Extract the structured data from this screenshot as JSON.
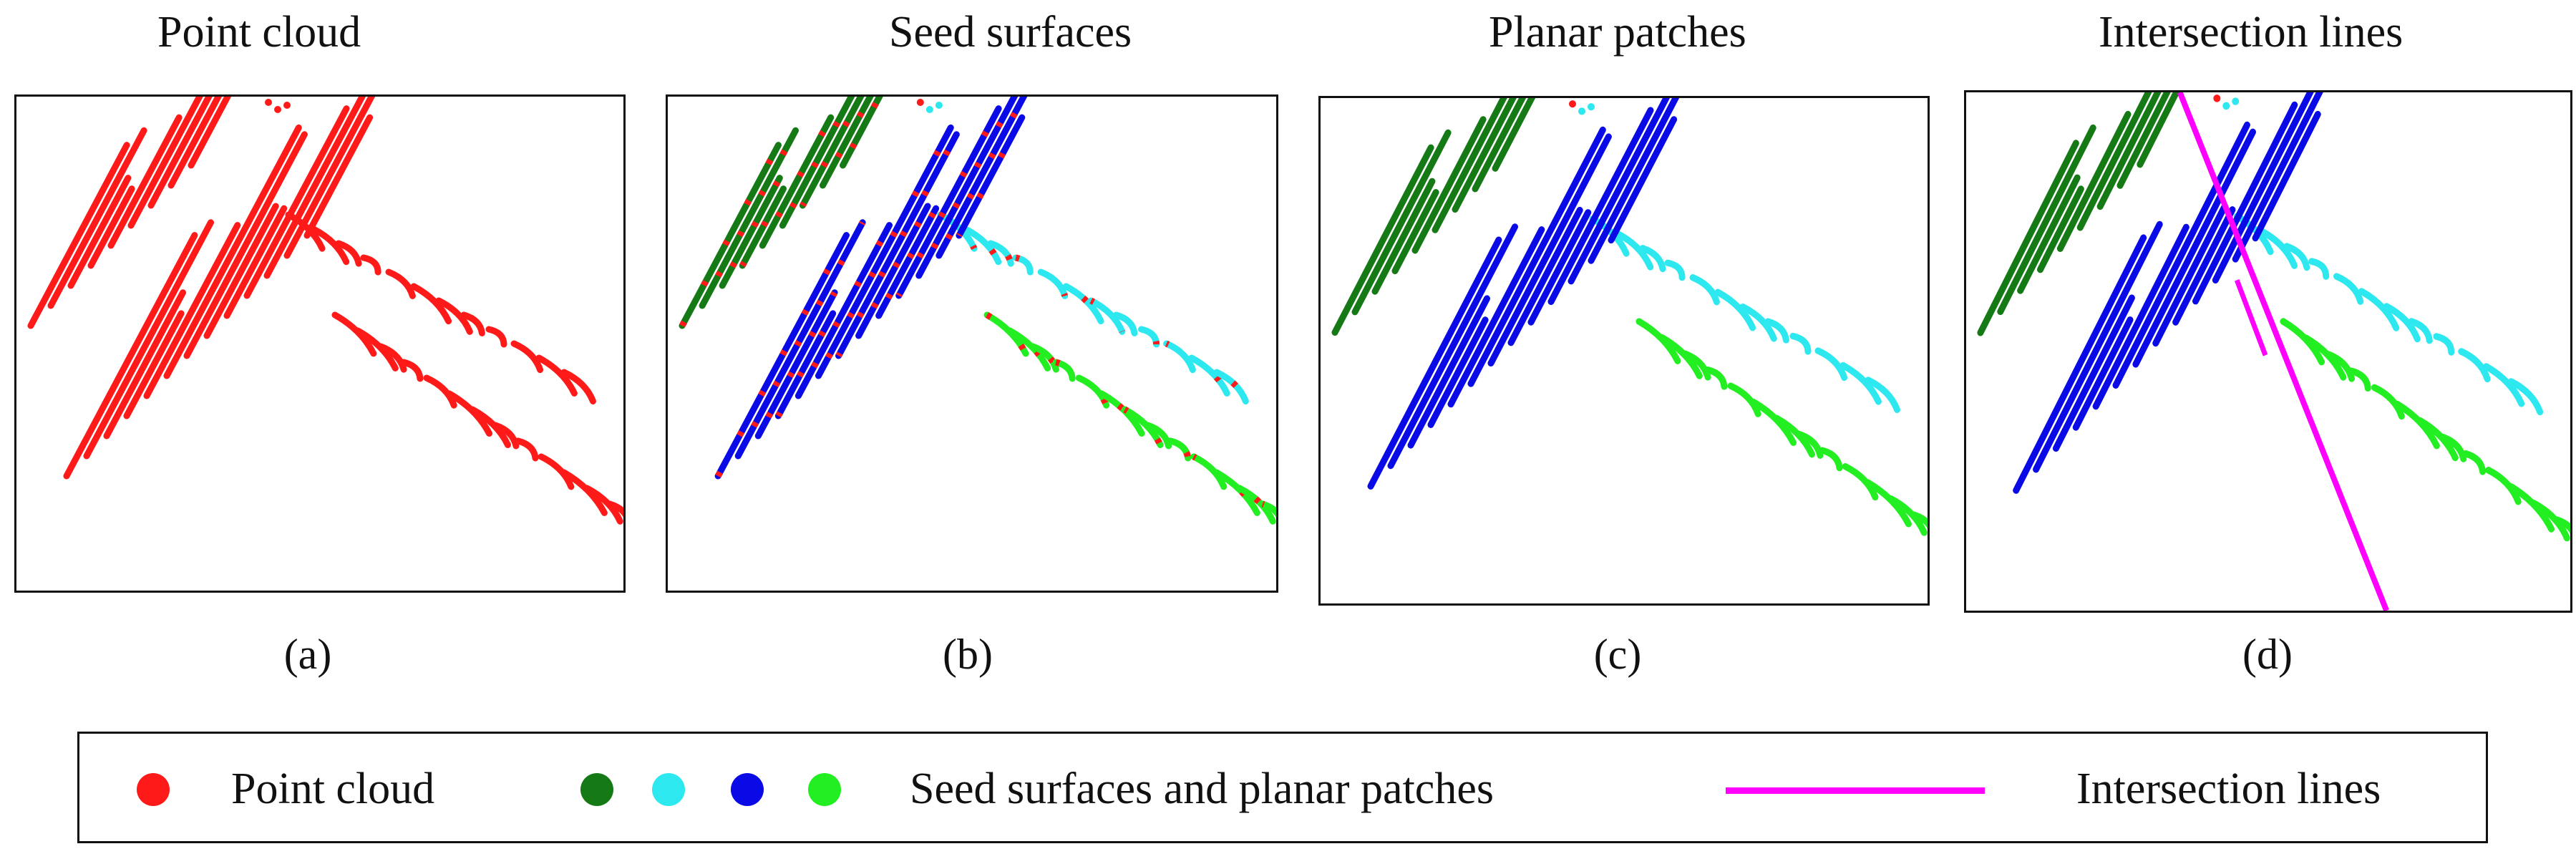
{
  "colors": {
    "point_cloud": "#ff1a1a",
    "dark_green": "#157a15",
    "cyan": "#2ee8f0",
    "blue": "#0a0ae6",
    "bright_green": "#22ee22",
    "intersection": "#ff00ff",
    "frame": "#111111"
  },
  "panels": [
    {
      "title": "Point cloud",
      "caption": "(a)",
      "mode": "raw"
    },
    {
      "title": "Seed surfaces",
      "caption": "(b)",
      "mode": "seed"
    },
    {
      "title": "Planar patches",
      "caption": "(c)",
      "mode": "planar"
    },
    {
      "title": "Intersection lines",
      "caption": "(d)",
      "mode": "intersection"
    }
  ],
  "legend": {
    "point_cloud_label": "Point cloud",
    "surfaces_label": "Seed surfaces and planar patches",
    "intersection_label": "Intersection lines",
    "surface_swatches": [
      "dark_green",
      "cyan",
      "blue",
      "bright_green"
    ]
  }
}
